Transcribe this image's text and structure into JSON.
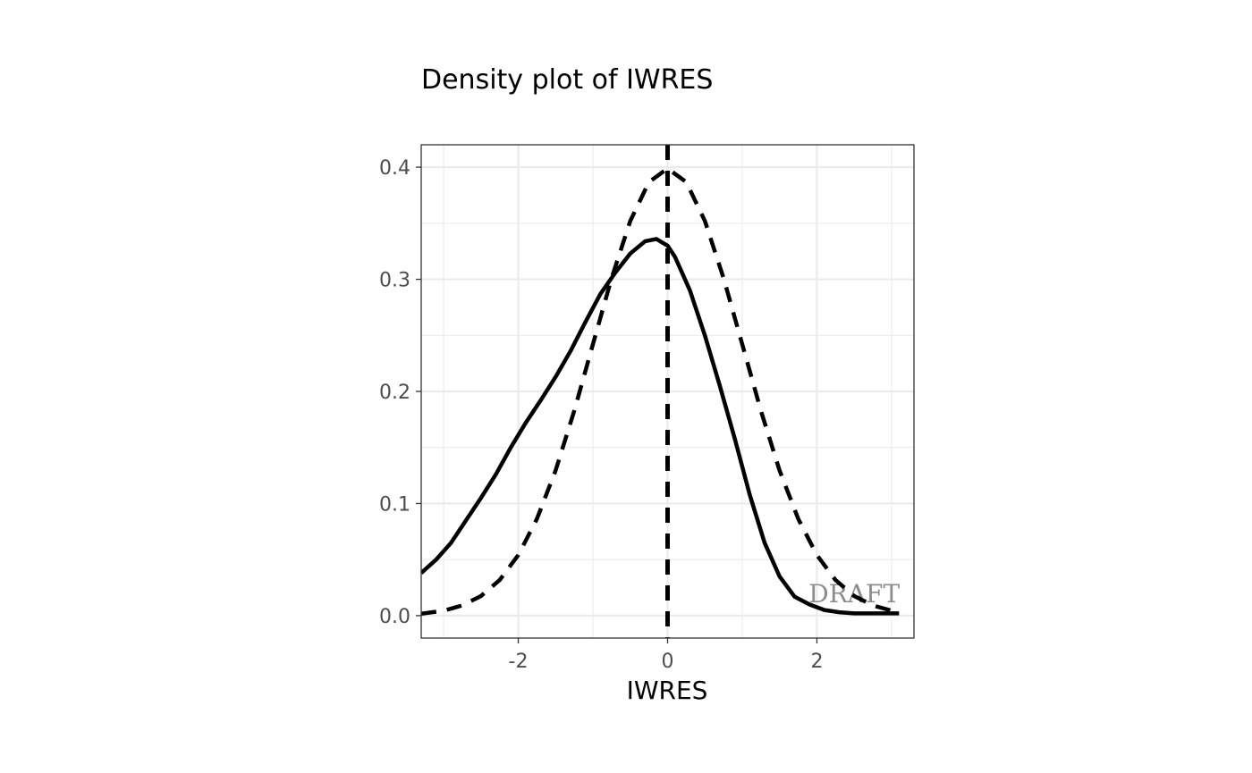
{
  "chart_data": {
    "type": "line",
    "title": "Density plot of IWRES",
    "xlabel": "IWRES",
    "ylabel": "",
    "xlim": [
      -3.3,
      3.3
    ],
    "ylim": [
      -0.02,
      0.42
    ],
    "x_ticks": [
      -2,
      0,
      2
    ],
    "x_tick_labels": [
      "-2",
      "0",
      "2"
    ],
    "y_ticks": [
      0.0,
      0.1,
      0.2,
      0.3,
      0.4
    ],
    "y_tick_labels": [
      "0.0",
      "0.1",
      "0.2",
      "0.3",
      "0.4"
    ],
    "grid": true,
    "legend": "none",
    "watermark": "DRAFT",
    "series": [
      {
        "style": "solid",
        "color": "#000000",
        "x": [
          -3.3,
          -3.1,
          -2.9,
          -2.7,
          -2.5,
          -2.3,
          -2.1,
          -1.9,
          -1.7,
          -1.5,
          -1.3,
          -1.1,
          -0.9,
          -0.7,
          -0.5,
          -0.3,
          -0.15,
          0.0,
          0.1,
          0.3,
          0.5,
          0.7,
          0.9,
          1.1,
          1.3,
          1.5,
          1.7,
          1.9,
          2.1,
          2.3,
          2.5,
          2.7,
          2.9,
          3.1
        ],
        "y": [
          0.038,
          0.05,
          0.065,
          0.085,
          0.105,
          0.126,
          0.15,
          0.172,
          0.192,
          0.213,
          0.236,
          0.262,
          0.287,
          0.306,
          0.323,
          0.334,
          0.336,
          0.33,
          0.32,
          0.29,
          0.25,
          0.205,
          0.158,
          0.108,
          0.065,
          0.035,
          0.017,
          0.01,
          0.005,
          0.003,
          0.002,
          0.002,
          0.002,
          0.002
        ]
      },
      {
        "style": "dashed",
        "color": "#000000",
        "x": [
          -3.3,
          -3.0,
          -2.75,
          -2.5,
          -2.25,
          -2.0,
          -1.75,
          -1.5,
          -1.25,
          -1.0,
          -0.75,
          -0.5,
          -0.25,
          0.0,
          0.25,
          0.5,
          0.75,
          1.0,
          1.25,
          1.5,
          1.75,
          2.0,
          2.25,
          2.5,
          2.75,
          3.0,
          3.1
        ],
        "y": [
          0.0017,
          0.0044,
          0.0091,
          0.0175,
          0.0317,
          0.054,
          0.0863,
          0.1295,
          0.1826,
          0.242,
          0.3011,
          0.3521,
          0.3867,
          0.3989,
          0.3867,
          0.3521,
          0.3011,
          0.242,
          0.1826,
          0.1295,
          0.0863,
          0.054,
          0.0317,
          0.0175,
          0.0091,
          0.0044,
          0.0033
        ]
      }
    ],
    "reference_lines": [
      {
        "orientation": "vertical",
        "x": 0,
        "style": "dashed",
        "color": "#000000"
      }
    ]
  }
}
